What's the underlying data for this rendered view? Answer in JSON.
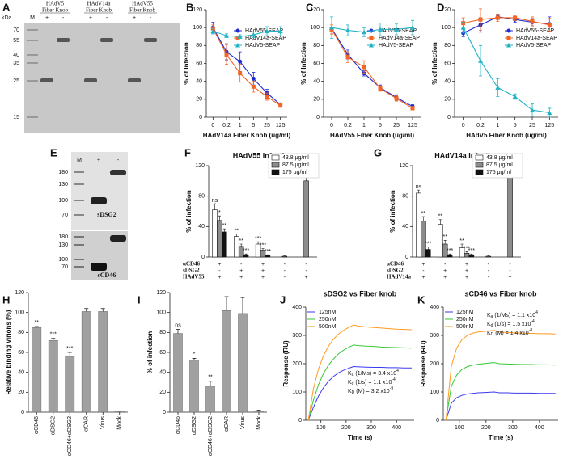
{
  "images": [
    {
      "panel_label": "A",
      "unit": "kDa",
      "marker_lane": "M",
      "ladder": [
        70,
        55,
        40,
        35,
        25,
        15
      ],
      "groups": [
        {
          "title": [
            "HAdV5",
            "Fiber Knob"
          ],
          "signs": [
            "+",
            "-"
          ]
        },
        {
          "title": [
            "HAdV14a",
            "Fiber Knob"
          ],
          "signs": [
            "+",
            "-"
          ]
        },
        {
          "title": [
            "HAdV55",
            "Fiber Knob"
          ],
          "signs": [
            "+",
            "-"
          ]
        }
      ]
    },
    {
      "panel_label": "E",
      "lanes": [
        "M",
        "+",
        "-"
      ],
      "ladder_top": [
        180,
        130,
        100,
        70
      ],
      "ladder_bottom": [
        180,
        130,
        100,
        70
      ],
      "blots": [
        "sDSG2",
        "sCD46"
      ]
    }
  ],
  "chart_data": [
    {
      "type": "line",
      "panel_label": "B",
      "xlabel": "HAdV14a Fiber Knob (ug/ml)",
      "ylabel": "% of Infection",
      "categories": [
        "0",
        "0.2",
        "1",
        "5",
        "25",
        "125"
      ],
      "ylim": [
        0,
        120
      ],
      "yticks": [
        0,
        20,
        40,
        60,
        80,
        100,
        120
      ],
      "legend": "upper right",
      "series": [
        {
          "name": "HAdV55-SEAP",
          "color": "#1f2bd0",
          "marker": "circle",
          "values": [
            100,
            73,
            62,
            43,
            27,
            14
          ],
          "errors": [
            6,
            9,
            11,
            7,
            4,
            2
          ]
        },
        {
          "name": "HAdV14a-SEAP",
          "color": "#f26522",
          "marker": "square",
          "values": [
            99,
            70,
            49,
            34,
            23,
            13
          ],
          "errors": [
            4,
            11,
            10,
            6,
            4,
            2
          ]
        },
        {
          "name": "HAdV5-SEAP",
          "color": "#22b3c4",
          "marker": "triangle",
          "values": [
            96,
            91,
            90,
            92,
            96,
            96
          ],
          "errors": [
            3,
            2,
            2,
            3,
            5,
            5
          ]
        }
      ]
    },
    {
      "type": "line",
      "panel_label": "C",
      "xlabel": "HAdV55 Fiber Knob (ug/ml)",
      "ylabel": "% of Infection",
      "categories": [
        "0",
        "0.2",
        "1",
        "5",
        "25",
        "125"
      ],
      "ylim": [
        0,
        120
      ],
      "yticks": [
        0,
        20,
        40,
        60,
        80,
        100,
        120
      ],
      "legend": "upper right",
      "series": [
        {
          "name": "HAdV55-SEAP",
          "color": "#1f2bd0",
          "marker": "circle",
          "values": [
            99,
            70,
            49,
            33,
            22,
            12
          ],
          "errors": [
            6,
            5,
            3,
            3,
            3,
            2
          ]
        },
        {
          "name": "HAdV14a-SEAP",
          "color": "#f26522",
          "marker": "square",
          "values": [
            98,
            67,
            56,
            32,
            21,
            10
          ],
          "errors": [
            5,
            6,
            7,
            3,
            3,
            2
          ]
        },
        {
          "name": "HAdV5-SEAP",
          "color": "#22b3c4",
          "marker": "triangle",
          "values": [
            100,
            97,
            95,
            98,
            98,
            100
          ],
          "errors": [
            12,
            6,
            5,
            7,
            6,
            8
          ]
        }
      ]
    },
    {
      "type": "line",
      "panel_label": "D",
      "xlabel": "HAdV5 Fiber Knob (ug/ml)",
      "ylabel": "% of Infection",
      "categories": [
        "0",
        "0.2",
        "1",
        "5",
        "25",
        "125"
      ],
      "ylim": [
        0,
        120
      ],
      "yticks": [
        0,
        20,
        40,
        60,
        80,
        100,
        120
      ],
      "legend": "upper right",
      "series": [
        {
          "name": "HAdV55-SEAP",
          "color": "#1f2bd0",
          "marker": "circle",
          "values": [
            94,
            103,
            112,
            109,
            106,
            104
          ],
          "errors": [
            4,
            8,
            3,
            3,
            4,
            8
          ]
        },
        {
          "name": "HAdV14a-SEAP",
          "color": "#f26522",
          "marker": "square",
          "values": [
            105,
            109,
            111,
            111,
            107,
            103
          ],
          "errors": [
            6,
            12,
            4,
            3,
            5,
            7
          ]
        },
        {
          "name": "HAdV5-SEAP",
          "color": "#22b3c4",
          "marker": "triangle",
          "values": [
            100,
            63,
            33,
            23,
            8,
            5
          ],
          "errors": [
            6,
            17,
            10,
            3,
            7,
            5
          ]
        }
      ]
    },
    {
      "type": "bar",
      "panel_label": "F",
      "title": "HAdV55 Infection",
      "ylabel": "% of infection",
      "ylim": [
        0,
        120
      ],
      "yticks": [
        0,
        40,
        80,
        120
      ],
      "legend": "upper right",
      "series": [
        {
          "name": "43.8 μg/ml",
          "color": "#ffffff",
          "values": [
            62,
            27,
            17,
            null,
            null
          ],
          "errors": [
            8,
            3,
            3,
            null,
            null
          ],
          "significance": [
            "ns",
            "**",
            "***",
            null,
            null
          ]
        },
        {
          "name": "87.5 μg/ml",
          "color": "#8c8c8c",
          "values": [
            48,
            14,
            9,
            1,
            100
          ],
          "errors": [
            6,
            3,
            2,
            1,
            10
          ],
          "significance": [
            "*",
            "**",
            "***",
            null,
            null
          ]
        },
        {
          "name": "175 μg/ml",
          "color": "#111111",
          "values": [
            33,
            3,
            2,
            null,
            null
          ],
          "errors": [
            4,
            1,
            1,
            null,
            null
          ],
          "significance": [
            "**",
            "***",
            "***",
            null,
            null
          ]
        }
      ],
      "conditions": [
        {
          "name": "αCD46",
          "signs": [
            "+",
            "-",
            "+",
            "-",
            "-"
          ]
        },
        {
          "name": "sDSG2",
          "signs": [
            "-",
            "+",
            "+",
            "-",
            "-"
          ]
        },
        {
          "name": "HAdV55",
          "signs": [
            "+",
            "+",
            "+",
            "-",
            "+"
          ]
        }
      ]
    },
    {
      "type": "bar",
      "panel_label": "G",
      "title": "HAdV14a Infection",
      "ylabel": "% of infection",
      "ylim": [
        0,
        120
      ],
      "yticks": [
        0,
        40,
        80,
        120
      ],
      "legend": "upper right",
      "series": [
        {
          "name": "43.8 μg/ml",
          "color": "#ffffff",
          "values": [
            84,
            43,
            12,
            null,
            null
          ],
          "errors": [
            4,
            6,
            5,
            null,
            null
          ],
          "significance": [
            "ns",
            "**",
            "**",
            null,
            null
          ]
        },
        {
          "name": "87.5 μg/ml",
          "color": "#8c8c8c",
          "values": [
            47,
            17,
            5,
            1,
            109
          ],
          "errors": [
            6,
            5,
            2,
            1,
            8
          ],
          "significance": [
            "**",
            "**",
            "***",
            null,
            null
          ]
        },
        {
          "name": "175 μg/ml",
          "color": "#111111",
          "values": [
            10,
            3,
            3,
            null,
            null
          ],
          "errors": [
            3,
            1,
            1,
            null,
            null
          ],
          "significance": [
            "***",
            "***",
            "***",
            null,
            null
          ]
        }
      ],
      "conditions": [
        {
          "name": "αCD46",
          "signs": [
            "+",
            "-",
            "+",
            "-",
            "-"
          ]
        },
        {
          "name": "sDSG2",
          "signs": [
            "-",
            "+",
            "+",
            "-",
            "-"
          ]
        },
        {
          "name": "HAdV14a",
          "signs": [
            "+",
            "+",
            "+",
            "-",
            "+"
          ]
        }
      ]
    },
    {
      "type": "bar",
      "panel_label": "H",
      "ylabel": "Relative binding virions (%)",
      "categories": [
        "αCD46",
        "αDSG2",
        "αCD46+αDSG2",
        "αCAR",
        "Virus",
        "Mock"
      ],
      "values": [
        85,
        72,
        56,
        101,
        101,
        1
      ],
      "errors": [
        1,
        2,
        4,
        3,
        3,
        0
      ],
      "significance": [
        "**",
        "***",
        "***",
        null,
        null,
        null
      ],
      "color": "#a0a0a0",
      "ylim": [
        0,
        120
      ],
      "yticks": [
        0,
        20,
        40,
        60,
        80,
        100,
        120
      ]
    },
    {
      "type": "bar",
      "panel_label": "I",
      "ylabel": "% of infection",
      "categories": [
        "αCD46",
        "αDSG2",
        "αCD46+αDSG2",
        "αCAR",
        "Virus",
        "Mock"
      ],
      "values": [
        79,
        52,
        26,
        102,
        99,
        1
      ],
      "errors": [
        4,
        2,
        5,
        14,
        16,
        1
      ],
      "significance": [
        "ns",
        "*",
        "**",
        null,
        null,
        null
      ],
      "color": "#a0a0a0",
      "ylim": [
        0,
        120
      ],
      "yticks": [
        0,
        20,
        40,
        60,
        80,
        100,
        120
      ]
    },
    {
      "type": "line",
      "panel_label": "J",
      "title": "sDSG2 vs Fiber knob",
      "xlabel": "Time (s)",
      "ylabel": "Response (RU)",
      "x": [
        50,
        70,
        90,
        110,
        130,
        150,
        170,
        190,
        210,
        230,
        250,
        280,
        310,
        340,
        370,
        400,
        430,
        460
      ],
      "xlim": [
        40,
        470
      ],
      "xticks": [
        100,
        200,
        300,
        400
      ],
      "ylim": [
        0,
        400
      ],
      "yticks": [
        0,
        100,
        200,
        300,
        400
      ],
      "legend": "upper left",
      "series": [
        {
          "name": "125nM",
          "color": "#3a3af0",
          "values": [
            0,
            45,
            85,
            115,
            138,
            155,
            168,
            177,
            184,
            190,
            189,
            188,
            187,
            187,
            186,
            186,
            185,
            185
          ]
        },
        {
          "name": "250nM",
          "color": "#35c835",
          "values": [
            0,
            70,
            125,
            165,
            195,
            217,
            235,
            248,
            258,
            266,
            264,
            262,
            261,
            259,
            258,
            257,
            256,
            255
          ]
        },
        {
          "name": "500nM",
          "color": "#ff9a20",
          "values": [
            0,
            110,
            180,
            228,
            262,
            287,
            305,
            318,
            328,
            337,
            333,
            330,
            328,
            326,
            324,
            322,
            321,
            320
          ]
        }
      ],
      "constants": [
        {
          "symbol": "K",
          "subscript": "a",
          "text": " (1/Ms) = 3.4 x10",
          "exponent": "4"
        },
        {
          "symbol": "K",
          "subscript": "d",
          "text": " (1/s) = 1.1 x10",
          "exponent": "-4"
        },
        {
          "symbol": "K",
          "subscript": "D",
          "text": " (M) = 3.2 x10",
          "exponent": "-9"
        }
      ]
    },
    {
      "type": "line",
      "panel_label": "K",
      "title": "sCD46 vs Fiber knob",
      "xlabel": "Time (s)",
      "ylabel": "Response (RU)",
      "x": [
        50,
        70,
        90,
        110,
        130,
        150,
        170,
        190,
        210,
        230,
        250,
        280,
        310,
        340,
        370,
        400,
        430,
        460
      ],
      "xlim": [
        40,
        470
      ],
      "xticks": [
        100,
        200,
        300,
        400
      ],
      "ylim": [
        0,
        400
      ],
      "yticks": [
        0,
        100,
        200,
        300,
        400
      ],
      "legend": "upper left",
      "series": [
        {
          "name": "125nM",
          "color": "#3a3af0",
          "values": [
            0,
            60,
            80,
            88,
            93,
            95,
            97,
            98,
            99,
            100,
            97,
            97,
            96,
            96,
            96,
            95,
            95,
            95
          ]
        },
        {
          "name": "250nM",
          "color": "#35c835",
          "values": [
            0,
            120,
            160,
            180,
            190,
            195,
            198,
            200,
            202,
            204,
            200,
            199,
            198,
            197,
            197,
            196,
            196,
            195
          ]
        },
        {
          "name": "500nM",
          "color": "#ff9a20",
          "values": [
            0,
            190,
            255,
            285,
            300,
            308,
            312,
            314,
            316,
            318,
            312,
            310,
            309,
            308,
            307,
            306,
            306,
            305
          ]
        }
      ],
      "constants": [
        {
          "symbol": "K",
          "subscript": "a",
          "text": " (1/Ms) = 1.1 x10",
          "exponent": "4"
        },
        {
          "symbol": "K",
          "subscript": "d",
          "text": " (1/s) = 1.5 x10",
          "exponent": "-4"
        },
        {
          "symbol": "K",
          "subscript": "D",
          "text": " (M) = 1.4 x10",
          "exponent": "-8"
        }
      ]
    }
  ]
}
